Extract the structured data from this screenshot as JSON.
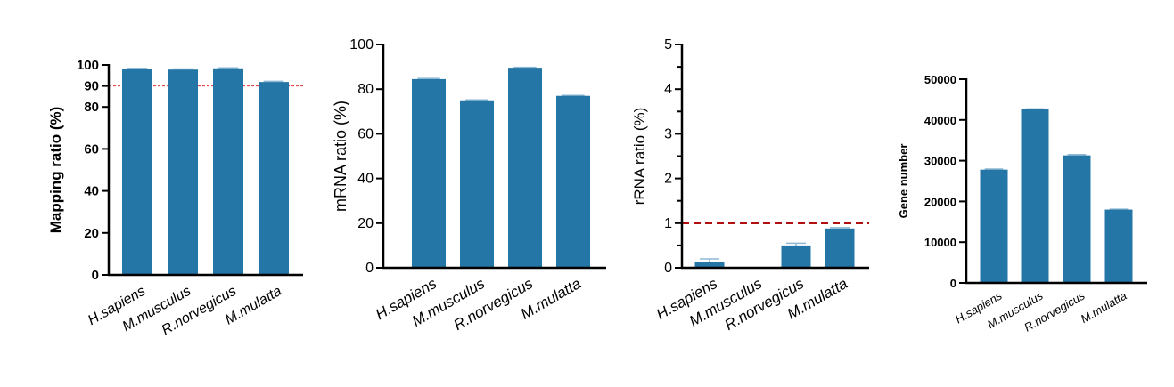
{
  "chart_data": [
    {
      "type": "bar",
      "categories": [
        "H.sapiens",
        "M.musculus",
        "R.norvegicus",
        "M.mulatta"
      ],
      "values": [
        98.3,
        97.8,
        98.4,
        91.9
      ],
      "errors": [
        0.1,
        0.3,
        0.2,
        0.3
      ],
      "ylabel": "Mapping ratio (%)",
      "ylim": [
        0,
        100
      ],
      "yticks": [
        0,
        20,
        40,
        60,
        80,
        90,
        100
      ],
      "reference_line": 90,
      "reference_color": "#e03030",
      "bar_color": "#2476a6",
      "grid": false
    },
    {
      "type": "bar",
      "categories": [
        "H.sapiens",
        "M.musculus",
        "R.norvegicus",
        "M.mulatta"
      ],
      "values": [
        84.5,
        75.0,
        89.6,
        77.0
      ],
      "errors": [
        0.3,
        0.2,
        0.2,
        0.2
      ],
      "ylabel": "mRNA ratio (%)",
      "ylim": [
        0,
        100
      ],
      "yticks": [
        0,
        20,
        40,
        60,
        80,
        100
      ],
      "bar_color": "#2476a6",
      "grid": false
    },
    {
      "type": "bar",
      "categories": [
        "H.sapiens",
        "M.musculus",
        "R.norvegicus",
        "M.mulatta"
      ],
      "values": [
        0.12,
        0.01,
        0.5,
        0.88
      ],
      "errors": [
        0.08,
        0.0,
        0.05,
        0.02
      ],
      "ylabel": "rRNA ratio (%)",
      "ylim": [
        0,
        5
      ],
      "yticks": [
        0,
        1,
        2,
        3,
        4,
        5
      ],
      "reference_line": 1,
      "reference_color": "#b01010",
      "bar_color": "#2476a6",
      "grid": false
    },
    {
      "type": "bar",
      "categories": [
        "H.sapiens",
        "M.musculus",
        "R.norvegicus",
        "M.mulatta"
      ],
      "values": [
        27800,
        42600,
        31300,
        18000
      ],
      "errors": [
        150,
        100,
        200,
        100
      ],
      "ylabel": "Gene number",
      "ylim": [
        0,
        50000
      ],
      "yticks": [
        0,
        10000,
        20000,
        30000,
        40000,
        50000
      ],
      "bar_color": "#2476a6",
      "grid": false
    }
  ]
}
